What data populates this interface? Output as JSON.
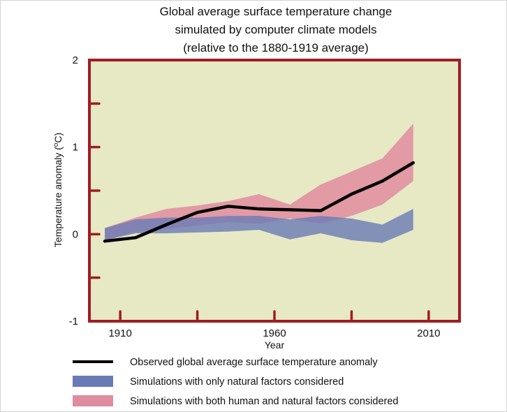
{
  "chart_data": {
    "type": "area",
    "title_lines": [
      "Global average surface temperature change",
      "simulated by computer climate models",
      "(relative to the 1880-1919 average)"
    ],
    "xlabel": "Year",
    "ylabel_prefix": "Temperature anomaly (",
    "ylabel_sup": "o",
    "ylabel_suffix": "C)",
    "xlim": [
      1900,
      2020
    ],
    "ylim": [
      -1,
      2
    ],
    "xticks": [
      {
        "value": 1910,
        "label": "1910"
      },
      {
        "value": 1960,
        "label": "1960"
      },
      {
        "value": 2010,
        "label": "2010"
      }
    ],
    "yticks": [
      {
        "value": 2,
        "label": "2"
      },
      {
        "value": 1,
        "label": "1"
      },
      {
        "value": 0,
        "label": "0"
      },
      {
        "value": -1,
        "label": "-1"
      }
    ],
    "minor_xticks": [
      1910,
      1935,
      1960,
      1985,
      2010
    ],
    "minor_yticks": [
      1.5,
      1,
      0.5,
      0,
      -0.5
    ],
    "observed": {
      "name": "Observed global average surface temperature anomaly",
      "color": "#000000",
      "x": [
        1905,
        1915,
        1925,
        1935,
        1945,
        1955,
        1965,
        1975,
        1985,
        1995,
        2005
      ],
      "y": [
        -0.08,
        -0.04,
        0.11,
        0.25,
        0.32,
        0.29,
        0.28,
        0.27,
        0.46,
        0.61,
        0.82
      ]
    },
    "natural": {
      "name": "Simulations with only natural factors considered",
      "color": "#6a7ab6",
      "x": [
        1905,
        1915,
        1925,
        1935,
        1945,
        1955,
        1965,
        1975,
        1985,
        1995,
        2005
      ],
      "upper": [
        0.07,
        0.17,
        0.19,
        0.19,
        0.21,
        0.21,
        0.17,
        0.21,
        0.18,
        0.11,
        0.29
      ],
      "lower": [
        -0.07,
        0.01,
        0.01,
        0.02,
        0.03,
        0.05,
        -0.06,
        0.01,
        -0.07,
        -0.1,
        0.05
      ]
    },
    "human_natural": {
      "name": "Simulations with both human and natural factors considered",
      "color": "#e08ca0",
      "x": [
        1905,
        1915,
        1925,
        1935,
        1945,
        1955,
        1965,
        1975,
        1985,
        1995,
        2005
      ],
      "upper": [
        0.07,
        0.19,
        0.29,
        0.33,
        0.38,
        0.46,
        0.34,
        0.57,
        0.72,
        0.87,
        1.27
      ],
      "lower": [
        -0.07,
        0.03,
        0.06,
        0.1,
        0.14,
        0.12,
        0.18,
        0.12,
        0.21,
        0.34,
        0.61
      ]
    },
    "legend_position": "bottom",
    "plot_background": "#e6e9c4",
    "frame_color": "#a01c22"
  }
}
